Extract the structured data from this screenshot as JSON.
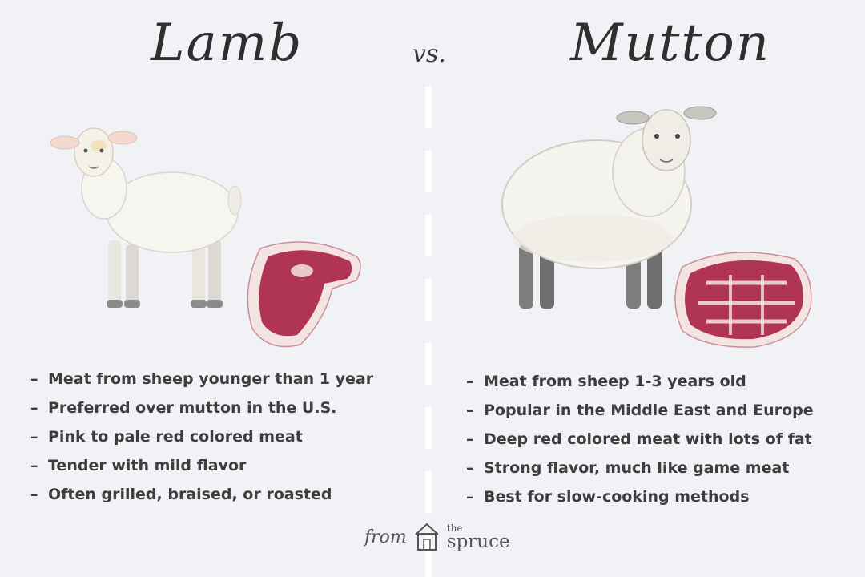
{
  "left": {
    "title": "Lamb",
    "facts": [
      "Meat from sheep younger than 1 year",
      "Preferred over mutton in the U.S.",
      "Pink to pale red colored meat",
      "Tender with mild flavor",
      "Often grilled, braised, or roasted"
    ]
  },
  "vs_label": "vs.",
  "right": {
    "title": "Mutton",
    "facts": [
      "Meat from sheep 1-3 years old",
      "Popular in the Middle East and Europe",
      "Deep red colored meat with lots of fat",
      "Strong flavor, much like game meat",
      "Best for slow-cooking methods"
    ]
  },
  "bullet": "–",
  "footer": {
    "from": "from",
    "brand_small": "the",
    "brand_name": "spruce",
    "icon": "house-icon"
  },
  "colors": {
    "background": "#f1f2f6",
    "text": "#3d3d3d",
    "meat": "#b03552",
    "fat": "#f3e3e3"
  }
}
